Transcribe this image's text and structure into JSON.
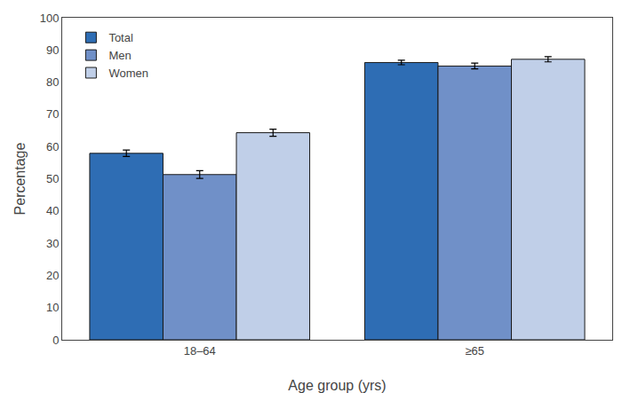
{
  "chart_data": {
    "type": "bar",
    "categories": [
      "18–64",
      "≥65"
    ],
    "series": [
      {
        "name": "Total",
        "color": "#2e6db4",
        "values": [
          57.9,
          86.1
        ],
        "errors": [
          1.0,
          0.7
        ]
      },
      {
        "name": "Men",
        "color": "#7090c8",
        "values": [
          51.3,
          85.0
        ],
        "errors": [
          1.2,
          0.9
        ]
      },
      {
        "name": "Women",
        "color": "#c0cfe8",
        "values": [
          64.3,
          87.1
        ],
        "errors": [
          1.1,
          0.8
        ]
      }
    ],
    "xlabel": "Age group (yrs)",
    "ylabel": "Percentage",
    "ylim": [
      0,
      100
    ],
    "yticks": [
      0,
      10,
      20,
      30,
      40,
      50,
      60,
      70,
      80,
      90,
      100
    ],
    "grid": false,
    "legend": "upper left"
  }
}
